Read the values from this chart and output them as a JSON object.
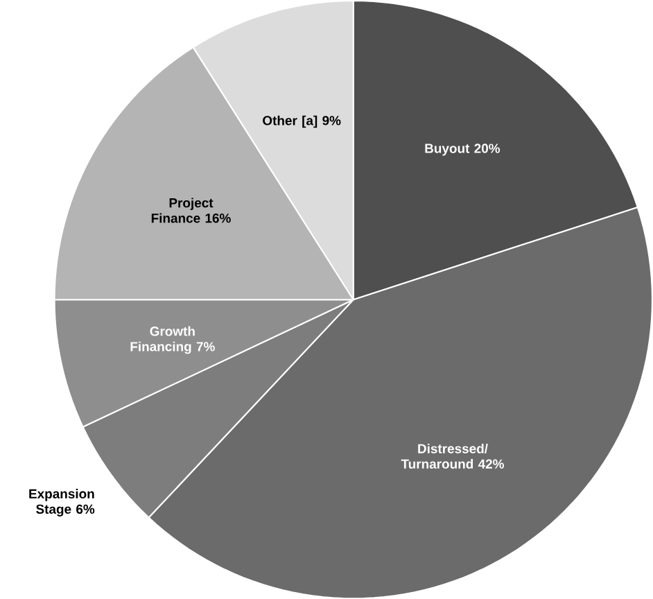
{
  "chart_data": {
    "type": "pie",
    "categories": [
      "Buyout",
      "Distressed/ Turnaround",
      "Expansion Stage",
      "Growth Financing",
      "Project Finance",
      "Other [a]"
    ],
    "values": [
      20,
      42,
      6,
      7,
      16,
      9
    ],
    "value_labels": [
      "20%",
      "42%",
      "6%",
      "7%",
      "16%",
      "9%"
    ],
    "colors": [
      "#4f4f4f",
      "#6b6b6b",
      "#7d7d7d",
      "#8e8e8e",
      "#b4b4b4",
      "#dcdcdc"
    ]
  }
}
